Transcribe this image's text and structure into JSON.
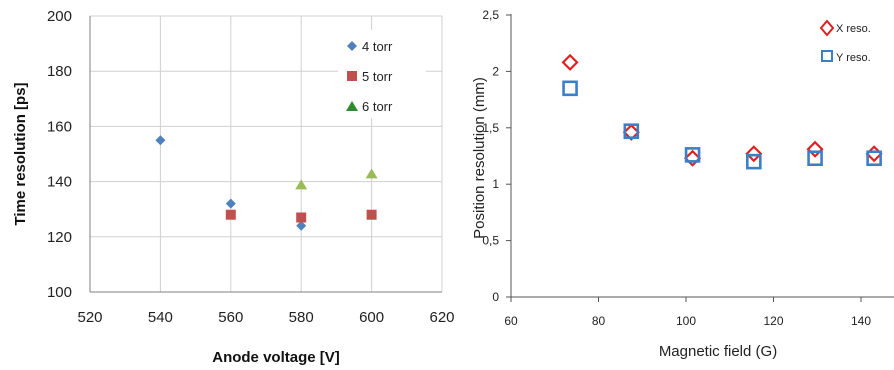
{
  "chart_data": [
    {
      "type": "scatter",
      "xlabel": "Anode voltage [V]",
      "ylabel": "Time resolution [ps]",
      "xlim": [
        520,
        620
      ],
      "ylim": [
        100,
        200
      ],
      "xticks": [
        "520",
        "540",
        "560",
        "580",
        "600",
        "620"
      ],
      "yticks": [
        "100",
        "120",
        "140",
        "160",
        "180",
        "200"
      ],
      "grid": true,
      "legend_position": "top-right",
      "series": [
        {
          "name": "4 torr",
          "marker": "diamond",
          "color": "#4f81bd",
          "points": [
            [
              540,
              155
            ],
            [
              560,
              132
            ],
            [
              580,
              124
            ]
          ]
        },
        {
          "name": "5 torr",
          "marker": "square",
          "color": "#c0504d",
          "points": [
            [
              560,
              128
            ],
            [
              580,
              127
            ],
            [
              600,
              128
            ]
          ]
        },
        {
          "name": "6 torr",
          "marker": "triangle",
          "color": "#9bbb59",
          "points": [
            [
              580,
              139
            ],
            [
              600,
              143
            ]
          ]
        }
      ]
    },
    {
      "type": "scatter",
      "xlabel": "Magnetic field (G)",
      "ylabel": "Position resolution (mm)",
      "xlim": [
        60,
        145
      ],
      "ylim": [
        0,
        2.5
      ],
      "xticks": [
        "60",
        "80",
        "100",
        "120",
        "140"
      ],
      "yticks": [
        "0",
        "0,5",
        "1",
        "1,5",
        "2",
        "2,5"
      ],
      "grid": false,
      "legend_position": "top-right",
      "series": [
        {
          "name": "X reso.",
          "marker": "open-diamond",
          "color": "#e02020",
          "points": [
            [
              73.5,
              2.08
            ],
            [
              87.5,
              1.46
            ],
            [
              101.5,
              1.23
            ],
            [
              115.5,
              1.27
            ],
            [
              129.5,
              1.31
            ],
            [
              143,
              1.27
            ]
          ]
        },
        {
          "name": "Y reso.",
          "marker": "open-square",
          "color": "#3a7fc8",
          "points": [
            [
              73.5,
              1.85
            ],
            [
              87.5,
              1.47
            ],
            [
              101.5,
              1.26
            ],
            [
              115.5,
              1.2
            ],
            [
              129.5,
              1.23
            ],
            [
              143,
              1.23
            ]
          ]
        }
      ]
    }
  ]
}
